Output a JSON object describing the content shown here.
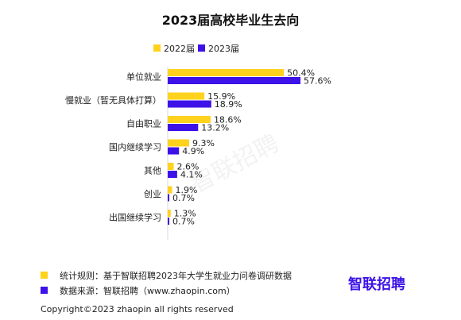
{
  "chart_data": {
    "type": "bar",
    "orientation": "horizontal",
    "title": "2023届高校毕业生去向",
    "categories": [
      "单位就业",
      "慢就业（暂无具体打算）",
      "自由职业",
      "国内继续学习",
      "其他",
      "创业",
      "出国继续学习"
    ],
    "series": [
      {
        "name": "2022届",
        "values": [
          50.4,
          15.9,
          18.6,
          9.3,
          2.6,
          1.9,
          1.3
        ],
        "labels": [
          "50.4%",
          "15.9%",
          "18.6%",
          "9.3%",
          "2.6%",
          "1.9%",
          "1.3%"
        ],
        "color": "#FFD21E"
      },
      {
        "name": "2023届",
        "values": [
          57.6,
          18.9,
          13.2,
          4.9,
          4.1,
          0.7,
          0.7
        ],
        "labels": [
          "57.6%",
          "18.9%",
          "13.2%",
          "4.9%",
          "4.1%",
          "0.7%",
          "0.7%"
        ],
        "color": "#3D12E8"
      }
    ],
    "xlim": [
      0,
      60
    ],
    "grid": false,
    "legend_position": "top"
  },
  "footer": {
    "note_rule": "统计规则：基于智联招聘2023年大学生就业力问卷调研数据",
    "note_source": "数据来源：智联招聘（www.zhaopin.com）",
    "copyright": "Copyright©2023 zhaopin all rights reserved",
    "brand": "智联招聘"
  },
  "watermark": "智联招聘",
  "colors": {
    "axis": "#D9D9D9",
    "rule_square": "#FFD21E",
    "source_square": "#3D12E8",
    "brand": "#3D12E8"
  }
}
